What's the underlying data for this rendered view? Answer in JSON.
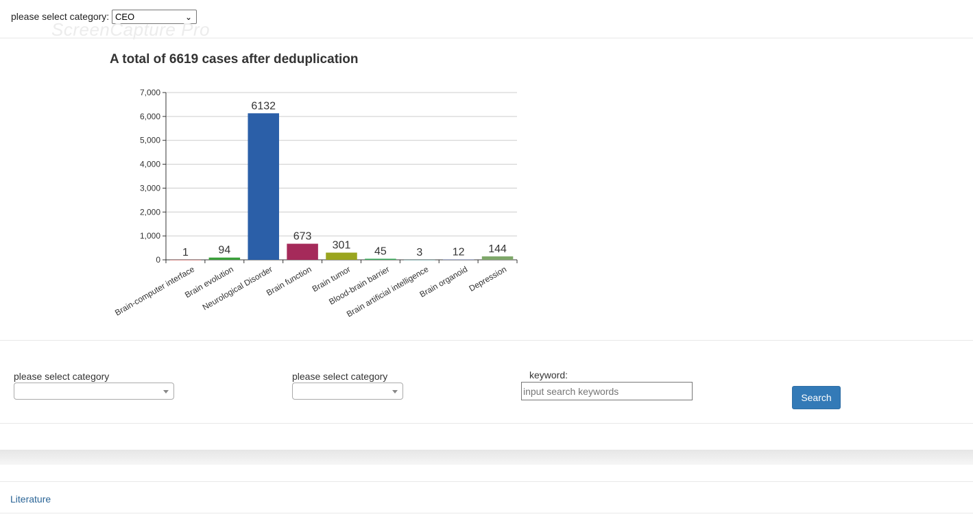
{
  "top": {
    "label": "please select category:",
    "selected": "CEO"
  },
  "watermark": "ScreenCapture Pro",
  "chart_title": "A total of 6619 cases after deduplication",
  "chart_data": {
    "type": "bar",
    "title": "A total of 6619 cases after deduplication",
    "categories": [
      "Brain-computer interface",
      "Brain evolution",
      "Neurological Disorder",
      "Brain function",
      "Brain tumor",
      "Blood-brain barrier",
      "Brain artificial intelligence",
      "Brain organoid",
      "Depression"
    ],
    "values": [
      1,
      94,
      6132,
      673,
      301,
      45,
      3,
      12,
      144
    ],
    "colors": [
      "#c23531",
      "#3aa03a",
      "#2b5fa8",
      "#a52a5a",
      "#9aa51f",
      "#3cab5c",
      "#3c8f8f",
      "#5c6fb0",
      "#7fa86a"
    ],
    "yticks": [
      "0",
      "1,000",
      "2,000",
      "3,000",
      "4,000",
      "5,000",
      "6,000",
      "7,000"
    ],
    "ylim": [
      0,
      7000
    ],
    "grid": true,
    "xlabel": "",
    "ylabel": ""
  },
  "filters": {
    "cat1_label": "please select category",
    "cat2_label": "please select category",
    "keyword_label": "keyword:",
    "keyword_placeholder": "input search keywords",
    "search_label": "Search"
  },
  "footer": {
    "literature": "Literature"
  }
}
